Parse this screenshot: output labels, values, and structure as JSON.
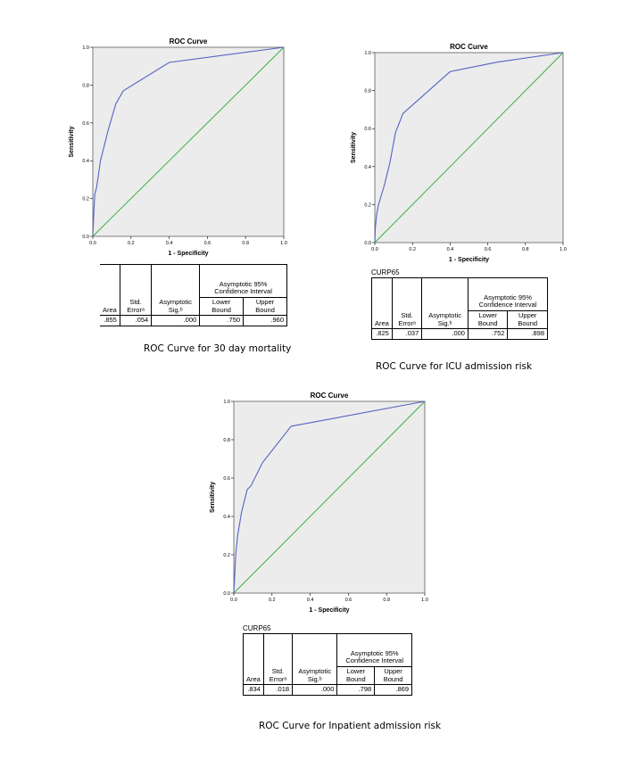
{
  "colors": {
    "curve": "#5563c2",
    "diagonal": "#3cb043",
    "plot_bg": "#ececec",
    "frame": "#5c5c5c"
  },
  "panels": [
    {
      "table_label": "",
      "caption": "ROC Curve for 30 day mortality",
      "table": {
        "ci_header": "Asymptotic 95% Confidence Interval",
        "area_label": "Area",
        "se_label": "Std. Errorᵃ",
        "sig_label": "Asymptotic Sig.ᵇ",
        "lower_label": "Lower Bound",
        "upper_label": "Upper Bound",
        "area": ".855",
        "se": ".054",
        "sig": ".000",
        "lower": ".750",
        "upper": ".960"
      }
    },
    {
      "table_label": "CURP65",
      "caption": "ROC Curve for ICU admission risk",
      "table": {
        "ci_header": "Asymptotic 95% Confidence Interval",
        "area_label": "Area",
        "se_label": "Std. Errorᵃ",
        "sig_label": "Asymptotic Sig.ᵇ",
        "lower_label": "Lower Bound",
        "upper_label": "Upper Bound",
        "area": ".825",
        "se": ".037",
        "sig": ".000",
        "lower": ".752",
        "upper": ".898"
      }
    },
    {
      "table_label": "CURP65",
      "caption": "ROC Curve for Inpatient admission risk",
      "table": {
        "ci_header": "Asymptotic 95% Confidence Interval",
        "area_label": "Area",
        "se_label": "Std. Errorᵃ",
        "sig_label": "Asymptotic Sig.ᵇ",
        "lower_label": "Lower Bound",
        "upper_label": "Upper Bound",
        "area": ".834",
        "se": ".018",
        "sig": ".000",
        "lower": ".798",
        "upper": ".869"
      }
    }
  ],
  "chart_data": [
    {
      "type": "line",
      "title": "ROC Curve",
      "xlabel": "1 - Specificity",
      "ylabel": "Sensitivity",
      "xlim": [
        0,
        1
      ],
      "ylim": [
        0,
        1
      ],
      "xticks": [
        "0.0",
        "0.2",
        "0.4",
        "0.6",
        "0.8",
        "1.0"
      ],
      "yticks": [
        "0.0",
        "0.2",
        "0.4",
        "0.6",
        "0.8",
        "1.0"
      ],
      "grid": false,
      "series": [
        {
          "x": [
            0,
            0.005,
            0.01,
            0.02,
            0.04,
            0.08,
            0.12,
            0.16,
            0.4,
            1.0
          ],
          "y": [
            0,
            0.12,
            0.22,
            0.26,
            0.4,
            0.56,
            0.7,
            0.77,
            0.92,
            1.0
          ]
        }
      ],
      "reference_line": {
        "x": [
          0,
          1
        ],
        "y": [
          0,
          1
        ]
      }
    },
    {
      "type": "line",
      "title": "ROC Curve",
      "xlabel": "1 - Specificity",
      "ylabel": "Sensitivity",
      "xlim": [
        0,
        1
      ],
      "ylim": [
        0,
        1
      ],
      "xticks": [
        "0.0",
        "0.2",
        "0.4",
        "0.6",
        "0.8",
        "1.0"
      ],
      "yticks": [
        "0.0",
        "0.2",
        "0.4",
        "0.6",
        "0.8",
        "1.0"
      ],
      "grid": false,
      "series": [
        {
          "x": [
            0,
            0.003,
            0.01,
            0.02,
            0.05,
            0.08,
            0.11,
            0.15,
            0.4,
            0.65,
            1.0
          ],
          "y": [
            0,
            0.08,
            0.15,
            0.2,
            0.3,
            0.42,
            0.58,
            0.68,
            0.9,
            0.95,
            1.0
          ]
        }
      ],
      "reference_line": {
        "x": [
          0,
          1
        ],
        "y": [
          0,
          1
        ]
      }
    },
    {
      "type": "line",
      "title": "ROC Curve",
      "xlabel": "1 - Specificity",
      "ylabel": "Sensitivity",
      "xlim": [
        0,
        1
      ],
      "ylim": [
        0,
        1
      ],
      "xticks": [
        "0.0",
        "0.2",
        "0.4",
        "0.6",
        "0.8",
        "1.0"
      ],
      "yticks": [
        "0.0",
        "0.2",
        "0.4",
        "0.6",
        "0.8",
        "1.0"
      ],
      "grid": false,
      "series": [
        {
          "x": [
            0,
            0.005,
            0.01,
            0.02,
            0.04,
            0.07,
            0.09,
            0.15,
            0.3,
            1.0
          ],
          "y": [
            0,
            0.1,
            0.2,
            0.3,
            0.42,
            0.54,
            0.56,
            0.68,
            0.87,
            1.0
          ]
        }
      ],
      "reference_line": {
        "x": [
          0,
          1
        ],
        "y": [
          0,
          1
        ]
      }
    }
  ]
}
